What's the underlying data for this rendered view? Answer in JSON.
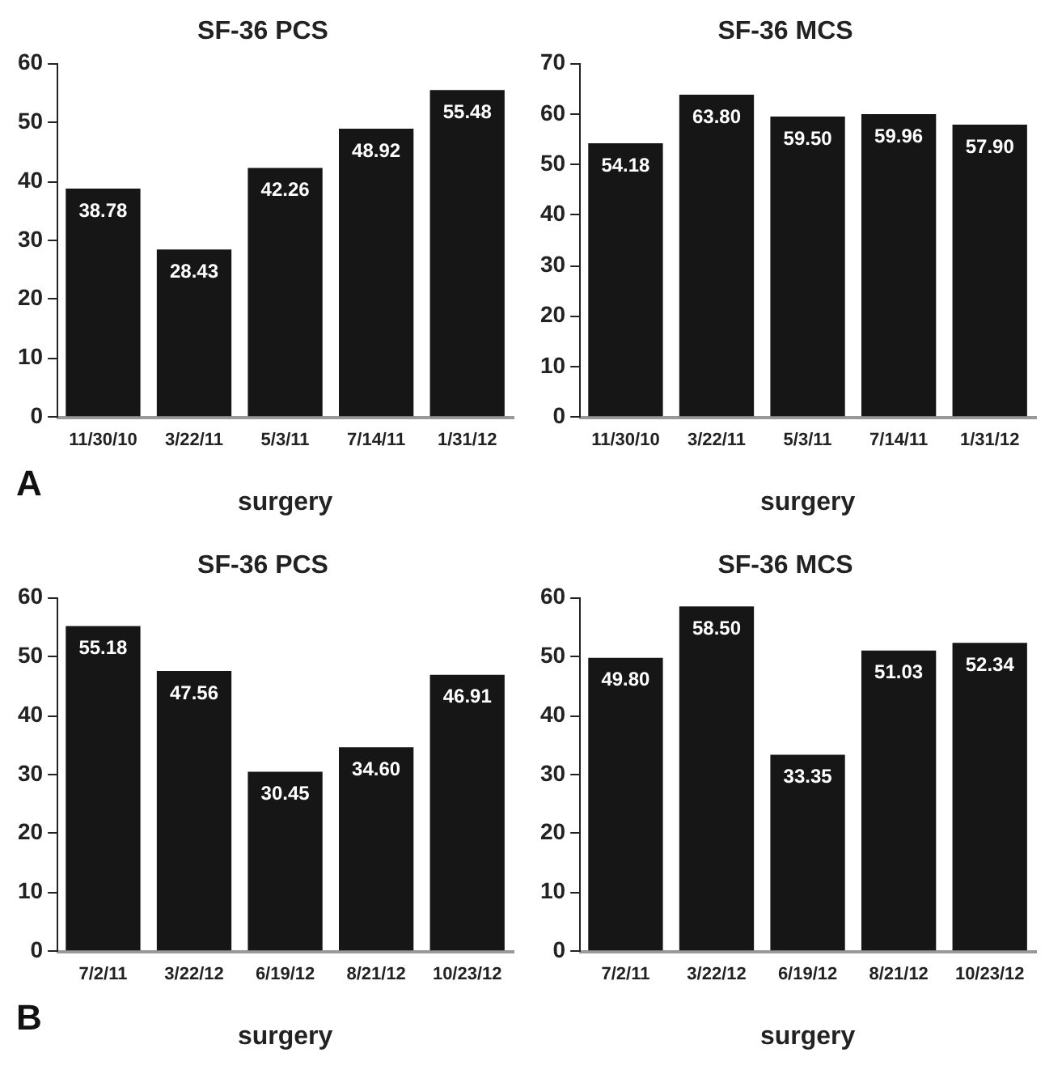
{
  "chart_data": [
    {
      "type": "bar",
      "title": "SF-36 PCS",
      "xlabel": "surgery",
      "categories": [
        "11/30/10",
        "3/22/11",
        "5/3/11",
        "7/14/11",
        "1/31/12"
      ],
      "values": [
        38.78,
        28.43,
        42.26,
        48.92,
        55.48
      ],
      "value_labels": [
        "38.78",
        "28.43",
        "42.26",
        "48.92",
        "55.48"
      ],
      "color": "#161616",
      "ylim": [
        0,
        60
      ],
      "yticks": [
        0,
        10,
        20,
        30,
        40,
        50,
        60
      ],
      "grid": false,
      "legend": false,
      "annotations": [
        "A"
      ]
    },
    {
      "type": "bar",
      "title": "SF-36 MCS",
      "xlabel": "surgery",
      "categories": [
        "11/30/10",
        "3/22/11",
        "5/3/11",
        "7/14/11",
        "1/31/12"
      ],
      "values": [
        54.18,
        63.8,
        59.5,
        59.96,
        57.9
      ],
      "value_labels": [
        "54.18",
        "63.80",
        "59.50",
        "59.96",
        "57.90"
      ],
      "color": "#161616",
      "ylim": [
        0,
        70
      ],
      "yticks": [
        0,
        10,
        20,
        30,
        40,
        50,
        60,
        70
      ],
      "grid": false,
      "legend": false
    },
    {
      "type": "bar",
      "title": "SF-36 PCS",
      "xlabel": "surgery",
      "categories": [
        "7/2/11",
        "3/22/12",
        "6/19/12",
        "8/21/12",
        "10/23/12"
      ],
      "values": [
        55.18,
        47.56,
        30.45,
        34.6,
        46.91
      ],
      "value_labels": [
        "55.18",
        "47.56",
        "30.45",
        "34.60",
        "46.91"
      ],
      "color": "#161616",
      "ylim": [
        0,
        60
      ],
      "yticks": [
        0,
        10,
        20,
        30,
        40,
        50,
        60
      ],
      "grid": false,
      "legend": false,
      "annotations": [
        "B"
      ]
    },
    {
      "type": "bar",
      "title": "SF-36 MCS",
      "xlabel": "surgery",
      "categories": [
        "7/2/11",
        "3/22/12",
        "6/19/12",
        "8/21/12",
        "10/23/12"
      ],
      "values": [
        49.8,
        58.5,
        33.35,
        51.03,
        52.34
      ],
      "value_labels": [
        "49.80",
        "58.50",
        "33.35",
        "51.03",
        "52.34"
      ],
      "color": "#161616",
      "ylim": [
        0,
        60
      ],
      "yticks": [
        0,
        10,
        20,
        30,
        40,
        50,
        60
      ],
      "grid": false,
      "legend": false
    }
  ]
}
